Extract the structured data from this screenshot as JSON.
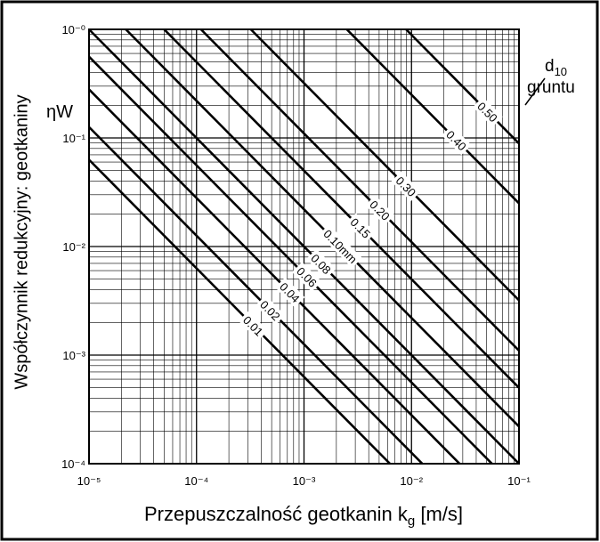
{
  "chart_data": {
    "type": "line",
    "y_label": "Współczynnik redukcyjny: geotkaniny",
    "y_symbol": "ηW",
    "x_label": {
      "main": "Przepuszczalność geotkanin k",
      "sub": "g",
      "unit": " [m/s]"
    },
    "legend_title": {
      "main": "d",
      "sub": "10",
      "line2": "gruntu"
    },
    "log_x": true,
    "log_y": true,
    "grid": true,
    "xlim": [
      1e-05,
      0.1
    ],
    "ylim": [
      0.0001,
      1
    ],
    "xticks": [
      {
        "value": 1e-05,
        "label": "10⁻⁵"
      },
      {
        "value": 0.0001,
        "label": "10⁻⁴"
      },
      {
        "value": 0.001,
        "label": "10⁻³"
      },
      {
        "value": 0.01,
        "label": "10⁻²"
      },
      {
        "value": 0.1,
        "label": "10⁻¹"
      }
    ],
    "yticks": [
      {
        "value": 0.0001,
        "label": "10⁻⁴"
      },
      {
        "value": 0.001,
        "label": "10⁻³"
      },
      {
        "value": 0.01,
        "label": "10⁻²"
      },
      {
        "value": 0.1,
        "label": "10⁻¹"
      },
      {
        "value": 1,
        "label": "10⁻⁰"
      }
    ],
    "series": [
      {
        "name": "0.01",
        "color": "#000000",
        "x": [
          1e-05,
          0.0063
        ],
        "values": [
          0.063,
          0.0001
        ]
      },
      {
        "name": "0.02",
        "color": "#000000",
        "x": [
          1e-05,
          0.0126
        ],
        "values": [
          0.126,
          0.0001
        ]
      },
      {
        "name": "0.04",
        "color": "#000000",
        "x": [
          1e-05,
          0.028
        ],
        "values": [
          0.28,
          0.0001
        ]
      },
      {
        "name": "0.06",
        "color": "#000000",
        "x": [
          1e-05,
          0.056
        ],
        "values": [
          0.56,
          0.0001
        ]
      },
      {
        "name": "0.08",
        "color": "#000000",
        "x": [
          1e-05,
          0.1
        ],
        "values": [
          1,
          0.0001
        ]
      },
      {
        "name": "0.10mm",
        "color": "#000000",
        "x": [
          2.2e-05,
          0.1
        ],
        "values": [
          1,
          0.00022
        ]
      },
      {
        "name": "0.15",
        "color": "#000000",
        "x": [
          5e-05,
          0.1
        ],
        "values": [
          1,
          0.0005
        ]
      },
      {
        "name": "0.20",
        "color": "#000000",
        "x": [
          0.00011,
          0.1
        ],
        "values": [
          1,
          0.0011
        ]
      },
      {
        "name": "0.30",
        "color": "#000000",
        "x": [
          0.00032,
          0.1
        ],
        "values": [
          1,
          0.0032
        ]
      },
      {
        "name": "0.40",
        "color": "#000000",
        "x": [
          0.0025,
          0.1
        ],
        "values": [
          1,
          0.025
        ]
      },
      {
        "name": "0.50",
        "color": "#000000",
        "x": [
          0.0089,
          0.1
        ],
        "values": [
          1,
          0.089
        ]
      }
    ]
  }
}
